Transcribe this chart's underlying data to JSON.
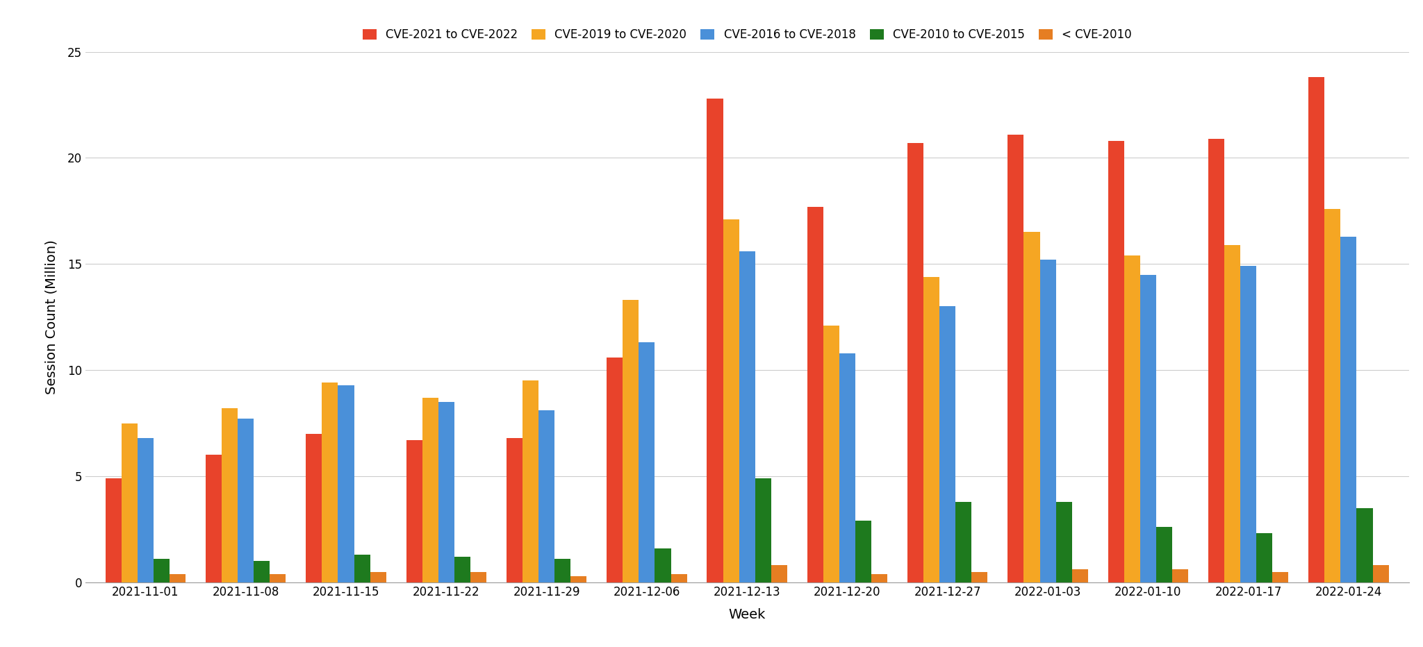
{
  "weeks": [
    "2021-11-01",
    "2021-11-08",
    "2021-11-15",
    "2021-11-22",
    "2021-11-29",
    "2021-12-06",
    "2021-12-13",
    "2021-12-20",
    "2021-12-27",
    "2022-01-03",
    "2022-01-10",
    "2022-01-17",
    "2022-01-24"
  ],
  "series": {
    "CVE-2021 to CVE-2022": [
      4.9,
      6.0,
      7.0,
      6.7,
      6.8,
      10.6,
      22.8,
      17.7,
      20.7,
      21.1,
      20.8,
      20.9,
      23.8
    ],
    "CVE-2019 to CVE-2020": [
      7.5,
      8.2,
      9.4,
      8.7,
      9.5,
      13.3,
      17.1,
      12.1,
      14.4,
      16.5,
      15.4,
      15.9,
      17.6
    ],
    "CVE-2016 to CVE-2018": [
      6.8,
      7.7,
      9.3,
      8.5,
      8.1,
      11.3,
      15.6,
      10.8,
      13.0,
      15.2,
      14.5,
      14.9,
      16.3
    ],
    "CVE-2010 to CVE-2015": [
      1.1,
      1.0,
      1.3,
      1.2,
      1.1,
      1.6,
      4.9,
      2.9,
      3.8,
      3.8,
      2.6,
      2.3,
      3.5
    ],
    "< CVE-2010": [
      0.4,
      0.4,
      0.5,
      0.5,
      0.3,
      0.4,
      0.8,
      0.4,
      0.5,
      0.6,
      0.6,
      0.5,
      0.8
    ]
  },
  "colors": {
    "CVE-2021 to CVE-2022": "#E8432B",
    "CVE-2019 to CVE-2020": "#F5A623",
    "CVE-2016 to CVE-2018": "#4A90D9",
    "CVE-2010 to CVE-2015": "#1E7A1E",
    "< CVE-2010": "#E67E22"
  },
  "xlabel": "Week",
  "ylabel": "Session Count (Million)",
  "ylim": [
    0,
    25
  ],
  "yticks": [
    0,
    5,
    10,
    15,
    20,
    25
  ],
  "background_color": "#ffffff",
  "grid_color": "#cccccc",
  "bar_width": 0.16,
  "legend_loc": "upper center",
  "legend_ncol": 5
}
